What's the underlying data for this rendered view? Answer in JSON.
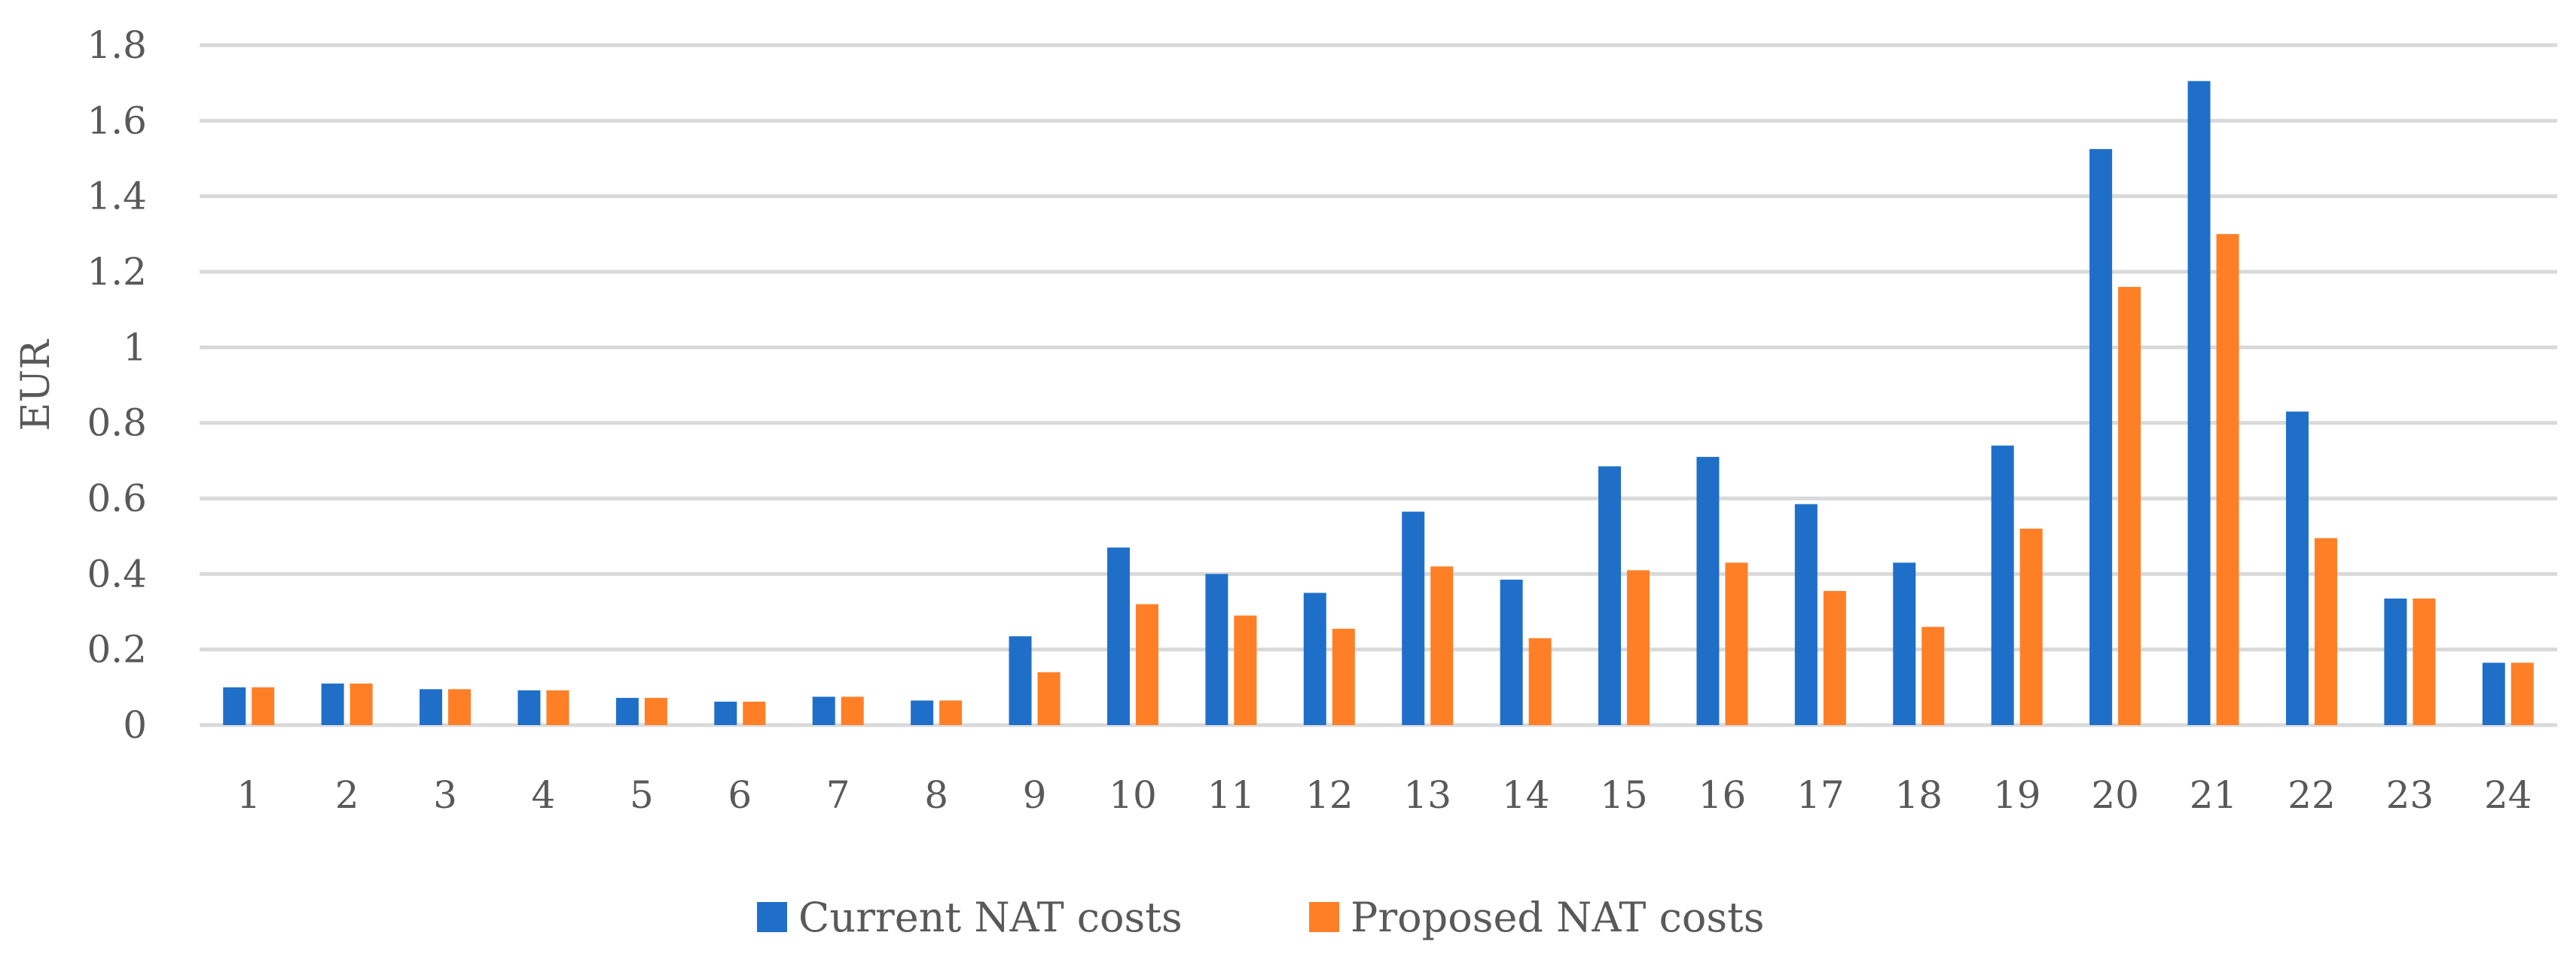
{
  "chart_data": {
    "type": "bar",
    "title": "",
    "xlabel": "",
    "ylabel": "EUR",
    "ylim": [
      0,
      1.8
    ],
    "yticks": [
      0,
      0.2,
      0.4,
      0.6,
      0.8,
      1,
      1.2,
      1.4,
      1.6,
      1.8
    ],
    "ytick_labels": [
      "0",
      "0.2",
      "0.4",
      "0.6",
      "0.8",
      "1",
      "1.2",
      "1.4",
      "1.6",
      "1.8"
    ],
    "grid": true,
    "legend_position": "bottom",
    "categories": [
      "1",
      "2",
      "3",
      "4",
      "5",
      "6",
      "7",
      "8",
      "9",
      "10",
      "11",
      "12",
      "13",
      "14",
      "15",
      "16",
      "17",
      "18",
      "19",
      "20",
      "21",
      "22",
      "23",
      "24"
    ],
    "series": [
      {
        "name": "Current NAT costs",
        "color": "#1f6fc9",
        "values": [
          0.1,
          0.11,
          0.095,
          0.092,
          0.072,
          0.062,
          0.075,
          0.065,
          0.235,
          0.47,
          0.4,
          0.35,
          0.565,
          0.385,
          0.685,
          0.71,
          0.585,
          0.43,
          0.74,
          1.525,
          1.705,
          0.83,
          0.335,
          0.165
        ]
      },
      {
        "name": "Proposed NAT costs",
        "color": "#ff7f27",
        "values": [
          0.1,
          0.11,
          0.095,
          0.092,
          0.072,
          0.062,
          0.075,
          0.065,
          0.14,
          0.32,
          0.29,
          0.255,
          0.42,
          0.23,
          0.41,
          0.43,
          0.355,
          0.26,
          0.52,
          1.16,
          1.3,
          0.495,
          0.335,
          0.165
        ]
      }
    ]
  }
}
